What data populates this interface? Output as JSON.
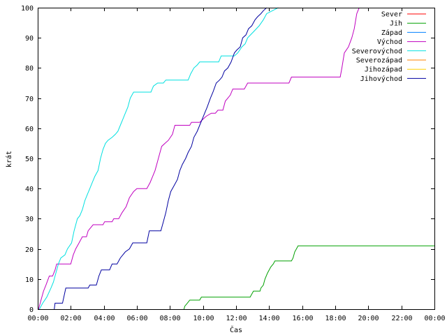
{
  "chart_data": {
    "type": "line",
    "title": "",
    "xlabel": "Čas",
    "ylabel": "krát",
    "xlim": [
      0,
      24
    ],
    "ylim": [
      0,
      100
    ],
    "xticks": [
      {
        "value": 0,
        "label": "00:00"
      },
      {
        "value": 2,
        "label": "02:00"
      },
      {
        "value": 4,
        "label": "04:00"
      },
      {
        "value": 6,
        "label": "06:00"
      },
      {
        "value": 8,
        "label": "08:00"
      },
      {
        "value": 10,
        "label": "10:00"
      },
      {
        "value": 12,
        "label": "12:00"
      },
      {
        "value": 14,
        "label": "14:00"
      },
      {
        "value": 16,
        "label": "16:00"
      },
      {
        "value": 18,
        "label": "18:00"
      },
      {
        "value": 20,
        "label": "20:00"
      },
      {
        "value": 22,
        "label": "22:00"
      },
      {
        "value": 24,
        "label": "00:00"
      }
    ],
    "yticks": [
      0,
      10,
      20,
      30,
      40,
      50,
      60,
      70,
      80,
      90,
      100
    ],
    "grid": false,
    "legend": "top-right",
    "series": [
      {
        "name": "Sever",
        "color": "#ff0000",
        "points": []
      },
      {
        "name": "Jih",
        "color": "#00a000",
        "points": [
          [
            8.85,
            0
          ],
          [
            8.9,
            1
          ],
          [
            9.05,
            2
          ],
          [
            9.2,
            3
          ],
          [
            9.8,
            3
          ],
          [
            9.9,
            4
          ],
          [
            12.85,
            4
          ],
          [
            12.95,
            5
          ],
          [
            13.05,
            6
          ],
          [
            13.45,
            6
          ],
          [
            13.5,
            7
          ],
          [
            13.65,
            8
          ],
          [
            13.7,
            9
          ],
          [
            13.75,
            10
          ],
          [
            13.9,
            12
          ],
          [
            14.1,
            14
          ],
          [
            14.25,
            15
          ],
          [
            14.35,
            16
          ],
          [
            15.35,
            16
          ],
          [
            15.45,
            17
          ],
          [
            15.55,
            19
          ],
          [
            15.65,
            20
          ],
          [
            15.75,
            21
          ],
          [
            24,
            21
          ]
        ]
      },
      {
        "name": "Západ",
        "color": "#0080ff",
        "points": []
      },
      {
        "name": "Východ",
        "color": "#c000c0",
        "points": [
          [
            0.05,
            0
          ],
          [
            0.2,
            3
          ],
          [
            0.35,
            6
          ],
          [
            0.5,
            8
          ],
          [
            0.7,
            11
          ],
          [
            0.9,
            11
          ],
          [
            1.05,
            13
          ],
          [
            1.15,
            15
          ],
          [
            2.0,
            15
          ],
          [
            2.15,
            18
          ],
          [
            2.3,
            20
          ],
          [
            2.5,
            22
          ],
          [
            2.7,
            24
          ],
          [
            2.95,
            24
          ],
          [
            3.05,
            26
          ],
          [
            3.2,
            27
          ],
          [
            3.35,
            28
          ],
          [
            3.95,
            28
          ],
          [
            4.05,
            29
          ],
          [
            4.5,
            29
          ],
          [
            4.6,
            30
          ],
          [
            4.9,
            30
          ],
          [
            5.1,
            32
          ],
          [
            5.35,
            34
          ],
          [
            5.55,
            37
          ],
          [
            5.8,
            39
          ],
          [
            6.0,
            40
          ],
          [
            6.6,
            40
          ],
          [
            6.8,
            42
          ],
          [
            6.95,
            44
          ],
          [
            7.1,
            46
          ],
          [
            7.25,
            49
          ],
          [
            7.4,
            52
          ],
          [
            7.5,
            54
          ],
          [
            7.7,
            55
          ],
          [
            7.9,
            56
          ],
          [
            8.15,
            58
          ],
          [
            8.3,
            61
          ],
          [
            9.2,
            61
          ],
          [
            9.3,
            62
          ],
          [
            9.8,
            62
          ],
          [
            10.0,
            63
          ],
          [
            10.2,
            64
          ],
          [
            10.5,
            65
          ],
          [
            10.75,
            65
          ],
          [
            10.9,
            66
          ],
          [
            11.2,
            66
          ],
          [
            11.35,
            69
          ],
          [
            11.5,
            70
          ],
          [
            11.65,
            71
          ],
          [
            11.8,
            73
          ],
          [
            12.5,
            73
          ],
          [
            12.7,
            75
          ],
          [
            15.2,
            75
          ],
          [
            15.35,
            77
          ],
          [
            18.3,
            77
          ],
          [
            18.4,
            80
          ],
          [
            18.55,
            85
          ],
          [
            18.8,
            87
          ],
          [
            19.0,
            90
          ],
          [
            19.15,
            93
          ],
          [
            19.3,
            98
          ],
          [
            19.45,
            100
          ]
        ]
      },
      {
        "name": "Severovýchod",
        "color": "#00e0e0",
        "points": [
          [
            0.1,
            0
          ],
          [
            0.3,
            2
          ],
          [
            0.55,
            4
          ],
          [
            0.8,
            7
          ],
          [
            0.95,
            9
          ],
          [
            1.1,
            12
          ],
          [
            1.25,
            15
          ],
          [
            1.4,
            17
          ],
          [
            1.65,
            18
          ],
          [
            1.8,
            20
          ],
          [
            2.05,
            22
          ],
          [
            2.2,
            26
          ],
          [
            2.4,
            30
          ],
          [
            2.55,
            31
          ],
          [
            2.7,
            33
          ],
          [
            2.85,
            36
          ],
          [
            3.0,
            38
          ],
          [
            3.15,
            40
          ],
          [
            3.3,
            42
          ],
          [
            3.45,
            44
          ],
          [
            3.65,
            46
          ],
          [
            3.8,
            50
          ],
          [
            3.95,
            53
          ],
          [
            4.1,
            55
          ],
          [
            4.25,
            56
          ],
          [
            4.5,
            57
          ],
          [
            4.7,
            58
          ],
          [
            4.85,
            59
          ],
          [
            5.0,
            61
          ],
          [
            5.15,
            63
          ],
          [
            5.3,
            65
          ],
          [
            5.45,
            67
          ],
          [
            5.6,
            70
          ],
          [
            5.8,
            72
          ],
          [
            6.85,
            72
          ],
          [
            7.0,
            74
          ],
          [
            7.25,
            75
          ],
          [
            7.6,
            75
          ],
          [
            7.75,
            76
          ],
          [
            9.1,
            76
          ],
          [
            9.25,
            78
          ],
          [
            9.45,
            80
          ],
          [
            9.65,
            81
          ],
          [
            9.8,
            82
          ],
          [
            10.95,
            82
          ],
          [
            11.1,
            84
          ],
          [
            11.9,
            84
          ],
          [
            12.1,
            85
          ],
          [
            12.35,
            87
          ],
          [
            12.55,
            88
          ],
          [
            12.7,
            90
          ],
          [
            13.05,
            92
          ],
          [
            13.4,
            94
          ],
          [
            13.65,
            96
          ],
          [
            13.85,
            98
          ],
          [
            14.2,
            99
          ],
          [
            14.55,
            100
          ]
        ]
      },
      {
        "name": "Severozápad",
        "color": "#ff8000",
        "points": []
      },
      {
        "name": "Jihozápad",
        "color": "#ffd000",
        "points": []
      },
      {
        "name": "Jihovýchod",
        "color": "#0000a0",
        "points": [
          [
            1.0,
            0
          ],
          [
            1.05,
            2
          ],
          [
            1.5,
            2
          ],
          [
            1.7,
            7
          ],
          [
            3.05,
            7
          ],
          [
            3.15,
            8
          ],
          [
            3.55,
            8
          ],
          [
            3.7,
            11
          ],
          [
            3.85,
            13
          ],
          [
            4.35,
            13
          ],
          [
            4.5,
            15
          ],
          [
            4.8,
            15
          ],
          [
            5.0,
            17
          ],
          [
            5.3,
            19
          ],
          [
            5.55,
            20
          ],
          [
            5.75,
            22
          ],
          [
            6.6,
            22
          ],
          [
            6.75,
            26
          ],
          [
            7.45,
            26
          ],
          [
            7.6,
            29
          ],
          [
            7.75,
            32
          ],
          [
            7.9,
            36
          ],
          [
            8.05,
            39
          ],
          [
            8.25,
            41
          ],
          [
            8.45,
            43
          ],
          [
            8.6,
            46
          ],
          [
            8.75,
            48
          ],
          [
            8.95,
            50
          ],
          [
            9.1,
            52
          ],
          [
            9.3,
            54
          ],
          [
            9.45,
            57
          ],
          [
            9.65,
            59
          ],
          [
            9.8,
            61
          ],
          [
            9.95,
            63
          ],
          [
            10.1,
            65
          ],
          [
            10.25,
            67
          ],
          [
            10.45,
            70
          ],
          [
            10.6,
            72
          ],
          [
            10.8,
            75
          ],
          [
            11.0,
            76
          ],
          [
            11.15,
            77
          ],
          [
            11.3,
            79
          ],
          [
            11.5,
            80
          ],
          [
            11.7,
            82
          ],
          [
            11.9,
            85
          ],
          [
            12.05,
            86
          ],
          [
            12.25,
            87
          ],
          [
            12.4,
            90
          ],
          [
            12.6,
            91
          ],
          [
            12.75,
            93
          ],
          [
            12.95,
            94
          ],
          [
            13.15,
            96
          ],
          [
            13.3,
            97
          ],
          [
            13.5,
            98
          ],
          [
            13.65,
            99
          ],
          [
            13.85,
            100
          ]
        ]
      }
    ]
  }
}
